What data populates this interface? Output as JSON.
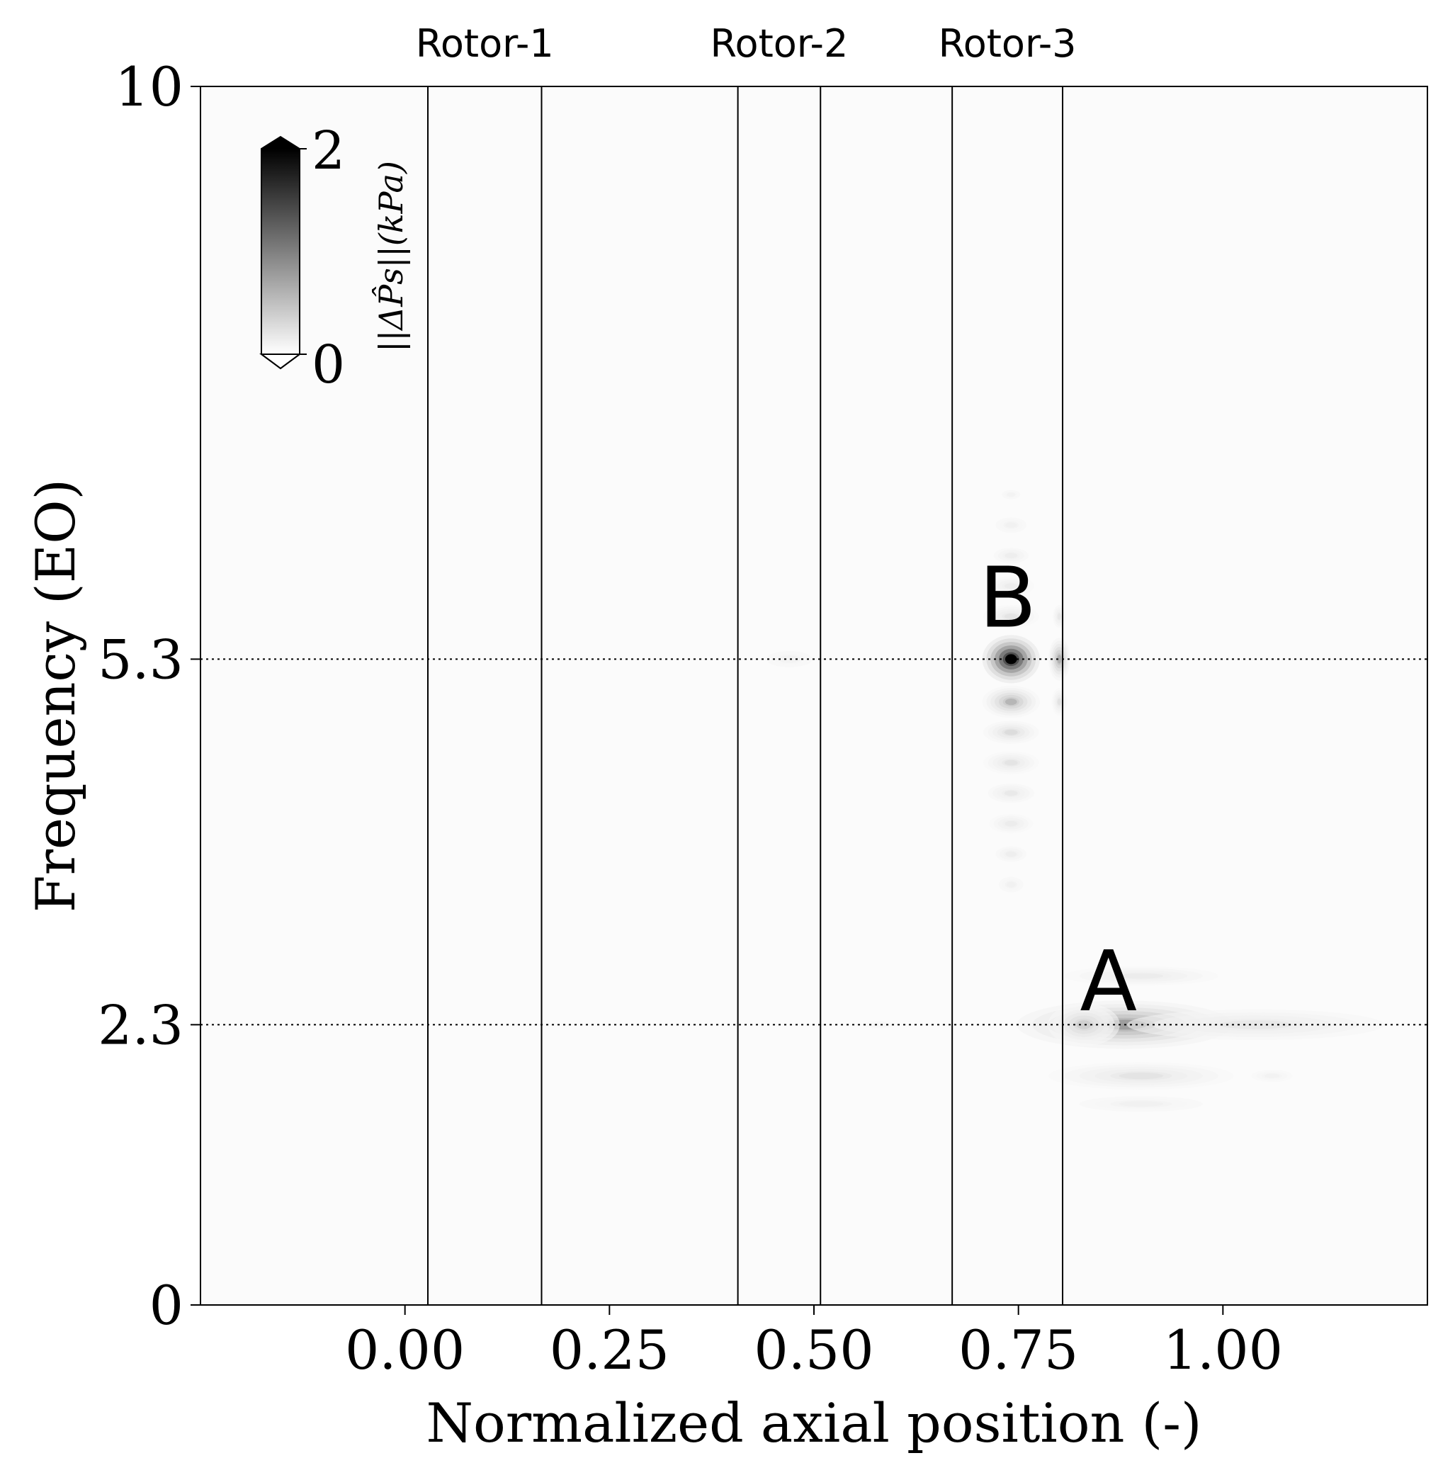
{
  "chart_data": {
    "type": "heatmap",
    "xlabel": "Normalized axial position (-)",
    "ylabel": "Frequency (EO)",
    "xlim": [
      -0.25,
      1.25
    ],
    "ylim": [
      0,
      10
    ],
    "xticks": [
      {
        "value": 0.0,
        "label": "0.00"
      },
      {
        "value": 0.25,
        "label": "0.25"
      },
      {
        "value": 0.5,
        "label": "0.50"
      },
      {
        "value": 0.75,
        "label": "0.75"
      },
      {
        "value": 1.0,
        "label": "1.00"
      }
    ],
    "yticks": [
      {
        "value": 0,
        "label": "0"
      },
      {
        "value": 2.3,
        "label": "2.3"
      },
      {
        "value": 5.3,
        "label": "5.3"
      },
      {
        "value": 10,
        "label": "10"
      }
    ],
    "rotors": [
      {
        "label": "Rotor-1",
        "start": 0.028,
        "end": 0.167
      },
      {
        "label": "Rotor-2",
        "start": 0.407,
        "end": 0.508
      },
      {
        "label": "Rotor-3",
        "start": 0.669,
        "end": 0.804
      }
    ],
    "reference_lines": [
      2.3,
      5.3
    ],
    "colorbar": {
      "label": "||ΔP̂s||(kPa)",
      "min": 0,
      "max": 2,
      "min_label": "0",
      "max_label": "2"
    },
    "annotations": [
      {
        "text": "A",
        "x": 0.86,
        "y": 2.65
      },
      {
        "text": "B",
        "x": 0.737,
        "y": 5.8
      }
    ],
    "features": [
      {
        "x": 0.741,
        "y": 5.3,
        "amplitude": 2.0,
        "sx": 0.016,
        "sy": 0.09
      },
      {
        "x": 0.741,
        "y": 4.95,
        "amplitude": 0.55,
        "sx": 0.016,
        "sy": 0.06
      },
      {
        "x": 0.741,
        "y": 4.7,
        "amplitude": 0.25,
        "sx": 0.018,
        "sy": 0.05
      },
      {
        "x": 0.741,
        "y": 4.45,
        "amplitude": 0.18,
        "sx": 0.018,
        "sy": 0.05
      },
      {
        "x": 0.741,
        "y": 4.2,
        "amplitude": 0.14,
        "sx": 0.018,
        "sy": 0.05
      },
      {
        "x": 0.741,
        "y": 3.95,
        "amplitude": 0.12,
        "sx": 0.017,
        "sy": 0.05
      },
      {
        "x": 0.741,
        "y": 3.7,
        "amplitude": 0.1,
        "sx": 0.015,
        "sy": 0.05
      },
      {
        "x": 0.741,
        "y": 3.45,
        "amplitude": 0.08,
        "sx": 0.012,
        "sy": 0.05
      },
      {
        "x": 0.741,
        "y": 5.65,
        "amplitude": 0.18,
        "sx": 0.018,
        "sy": 0.05
      },
      {
        "x": 0.741,
        "y": 5.9,
        "amplitude": 0.12,
        "sx": 0.018,
        "sy": 0.05
      },
      {
        "x": 0.741,
        "y": 6.15,
        "amplitude": 0.1,
        "sx": 0.017,
        "sy": 0.05
      },
      {
        "x": 0.741,
        "y": 6.4,
        "amplitude": 0.08,
        "sx": 0.015,
        "sy": 0.05
      },
      {
        "x": 0.741,
        "y": 6.65,
        "amplitude": 0.06,
        "sx": 0.012,
        "sy": 0.04
      },
      {
        "x": 0.8,
        "y": 5.3,
        "amplitude": 0.6,
        "sx": 0.006,
        "sy": 0.08
      },
      {
        "x": 0.8,
        "y": 4.95,
        "amplitude": 0.2,
        "sx": 0.005,
        "sy": 0.06
      },
      {
        "x": 0.8,
        "y": 5.65,
        "amplitude": 0.15,
        "sx": 0.005,
        "sy": 0.06
      },
      {
        "x": 0.47,
        "y": 5.3,
        "amplitude": 0.06,
        "sx": 0.03,
        "sy": 0.07
      },
      {
        "x": 0.88,
        "y": 2.3,
        "amplitude": 0.75,
        "sx": 0.06,
        "sy": 0.09
      },
      {
        "x": 0.83,
        "y": 2.3,
        "amplitude": 0.35,
        "sx": 0.02,
        "sy": 0.08
      },
      {
        "x": 1.04,
        "y": 2.3,
        "amplitude": 0.15,
        "sx": 0.1,
        "sy": 0.08
      },
      {
        "x": 0.9,
        "y": 1.88,
        "amplitude": 0.18,
        "sx": 0.06,
        "sy": 0.06
      },
      {
        "x": 0.9,
        "y": 1.65,
        "amplitude": 0.08,
        "sx": 0.06,
        "sy": 0.05
      },
      {
        "x": 0.9,
        "y": 2.7,
        "amplitude": 0.12,
        "sx": 0.06,
        "sy": 0.05
      },
      {
        "x": 1.06,
        "y": 1.88,
        "amplitude": 0.07,
        "sx": 0.02,
        "sy": 0.04
      },
      {
        "x": 0.58,
        "y": 2.3,
        "amplitude": 0.04,
        "sx": 0.03,
        "sy": 0.05
      }
    ]
  }
}
